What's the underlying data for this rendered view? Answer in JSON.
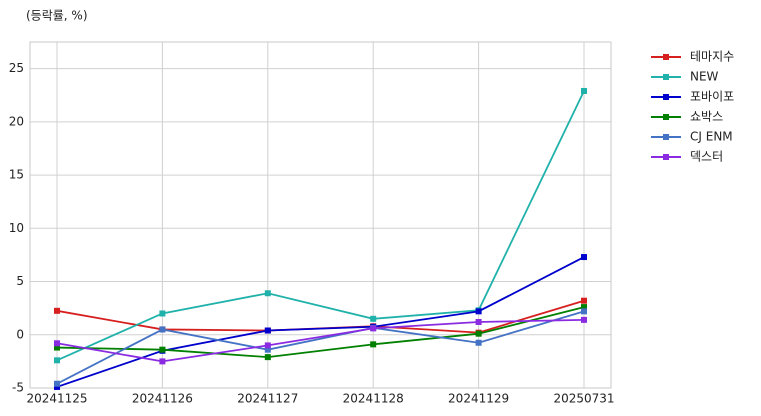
{
  "chart_data": {
    "type": "line",
    "y_label": "(등락률, %)",
    "categories": [
      "20241125",
      "20241126",
      "20241127",
      "20241128",
      "20241129",
      "20250731"
    ],
    "series": [
      {
        "name": "테마지수",
        "color": "#d62020",
        "values": [
          2.25,
          0.5,
          0.4,
          0.8,
          0.2,
          3.2
        ]
      },
      {
        "name": "NEW",
        "color": "#20b2aa",
        "values": [
          -2.4,
          2.0,
          3.9,
          1.5,
          2.3,
          22.9
        ]
      },
      {
        "name": "포바이포",
        "color": "#0000cd",
        "values": [
          -4.9,
          -1.5,
          0.4,
          0.75,
          2.2,
          7.3
        ]
      },
      {
        "name": "쇼박스",
        "color": "#008000",
        "values": [
          -1.2,
          -1.4,
          -2.1,
          -0.9,
          0.1,
          2.6
        ]
      },
      {
        "name": "CJ ENM",
        "color": "#4472c4",
        "values": [
          -4.6,
          0.5,
          -1.4,
          0.65,
          -0.75,
          2.2
        ]
      },
      {
        "name": "덱스터",
        "color": "#8a2be2",
        "values": [
          -0.8,
          -2.5,
          -1.0,
          0.6,
          1.2,
          1.4
        ]
      }
    ],
    "ylim": [
      -5,
      27.5
    ],
    "yticks": [
      -5,
      0,
      5,
      10,
      15,
      20,
      25
    ],
    "grid": true,
    "legend": "right"
  }
}
